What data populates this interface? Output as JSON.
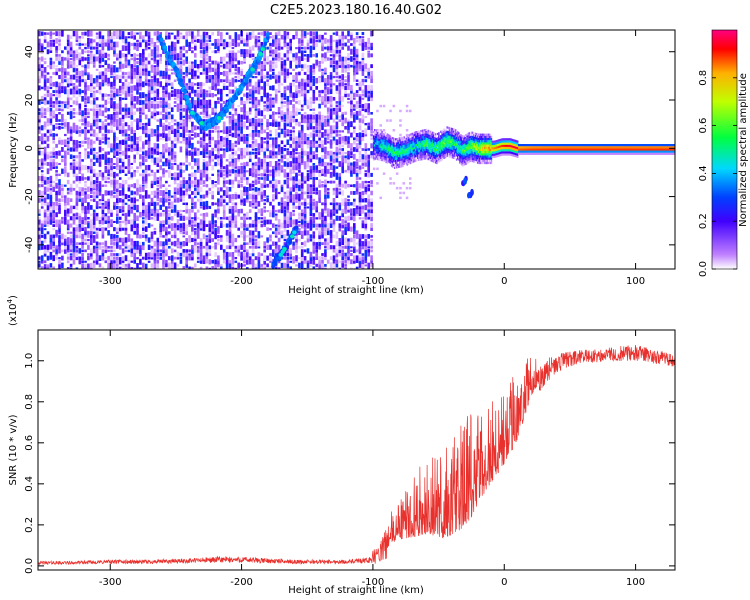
{
  "figure": {
    "title": "C2E5.2023.180.16.40.G02"
  },
  "colors": {
    "snr_line": "#e8302c",
    "ridge": "#7000ff"
  },
  "chart_data": [
    {
      "type": "heatmap",
      "xlabel": "Height of straight line (km)",
      "ylabel": "Frequency (Hz)",
      "xlim": [
        -355,
        130
      ],
      "ylim": [
        -50,
        49
      ],
      "x_ticks": [
        -300,
        -200,
        -100,
        0,
        100
      ],
      "y_ticks": [
        -40,
        -20,
        0,
        20,
        40
      ],
      "colorbar": {
        "label": "Normalized spectral amplitude",
        "range": [
          0,
          1
        ],
        "ticks": [
          0.0,
          0.2,
          0.4,
          0.6,
          0.8
        ],
        "colormap": "white-purple-blue-cyan-green-yellow-red"
      },
      "noise_region": {
        "x_range": [
          -355,
          -100
        ],
        "level": "low",
        "mean_amplitude": 0.15
      },
      "ridge_curves": [
        {
          "x": [
            -262,
            -248,
            -238,
            -228,
            -218,
            -208,
            -198,
            -188,
            -180
          ],
          "y": [
            45,
            30,
            15,
            9,
            12,
            19,
            27,
            36,
            46
          ],
          "amplitude": 0.35
        },
        {
          "x": [
            -176,
            -170,
            -164,
            -158
          ],
          "y": [
            -48,
            -44,
            -39,
            -33
          ],
          "amplitude": 0.3
        }
      ],
      "main_band": {
        "x": [
          -100,
          -92,
          -84,
          -76,
          -68,
          -60,
          -52,
          -44,
          -38,
          -32,
          -26,
          -20,
          -14,
          -8,
          -2,
          4,
          10,
          20,
          40,
          60,
          80,
          100,
          130
        ],
        "y": [
          2,
          1,
          -2,
          -1,
          1,
          2,
          0,
          3,
          2,
          -1,
          1,
          0,
          0,
          0,
          1,
          1,
          0,
          0,
          0,
          0,
          0,
          0,
          0
        ],
        "amplitude": [
          0.35,
          0.45,
          0.5,
          0.5,
          0.45,
          0.55,
          0.55,
          0.6,
          0.5,
          0.55,
          0.6,
          0.7,
          0.8,
          0.85,
          0.9,
          0.95,
          0.95,
          0.97,
          0.98,
          0.98,
          0.98,
          0.98,
          0.98
        ]
      },
      "secondary_spots": [
        {
          "x": -30,
          "y": -13
        },
        {
          "x": -26,
          "y": -18
        }
      ]
    },
    {
      "type": "line",
      "xlabel": "Height of straight line (km)",
      "ylabel": "SNR (10 * v/v)",
      "y_multiplier": "(x10",
      "y_multiplier_exp": "4",
      "y_multiplier_close": ")",
      "xlim": [
        -355,
        130
      ],
      "ylim": [
        -0.02,
        1.15
      ],
      "x_ticks": [
        -300,
        -200,
        -100,
        0,
        100
      ],
      "y_ticks": [
        0.0,
        0.2,
        0.4,
        0.6,
        0.8,
        1.0
      ],
      "series": [
        {
          "x": [
            -355,
            -330,
            -300,
            -270,
            -240,
            -220,
            -200,
            -180,
            -160,
            -140,
            -120,
            -105,
            -95,
            -88,
            -82,
            -75,
            -68,
            -60,
            -52,
            -45,
            -38,
            -32,
            -26,
            -20,
            -14,
            -8,
            -2,
            4,
            10,
            14,
            20,
            28,
            36,
            45,
            60,
            80,
            100,
            115,
            130
          ],
          "y": [
            0.015,
            0.015,
            0.02,
            0.02,
            0.025,
            0.03,
            0.03,
            0.025,
            0.02,
            0.02,
            0.02,
            0.025,
            0.06,
            0.12,
            0.16,
            0.18,
            0.2,
            0.22,
            0.22,
            0.22,
            0.25,
            0.28,
            0.32,
            0.38,
            0.45,
            0.5,
            0.55,
            0.6,
            0.68,
            0.75,
            0.86,
            0.93,
            0.97,
            1.0,
            1.02,
            1.03,
            1.04,
            1.02,
            1.0
          ],
          "noise_amp": [
            0.008,
            0.008,
            0.01,
            0.01,
            0.012,
            0.015,
            0.015,
            0.012,
            0.01,
            0.01,
            0.01,
            0.015,
            0.05,
            0.09,
            0.12,
            0.16,
            0.2,
            0.22,
            0.26,
            0.3,
            0.33,
            0.33,
            0.33,
            0.3,
            0.28,
            0.27,
            0.26,
            0.24,
            0.22,
            0.2,
            0.12,
            0.07,
            0.05,
            0.04,
            0.035,
            0.035,
            0.04,
            0.035,
            0.03
          ]
        }
      ]
    }
  ]
}
